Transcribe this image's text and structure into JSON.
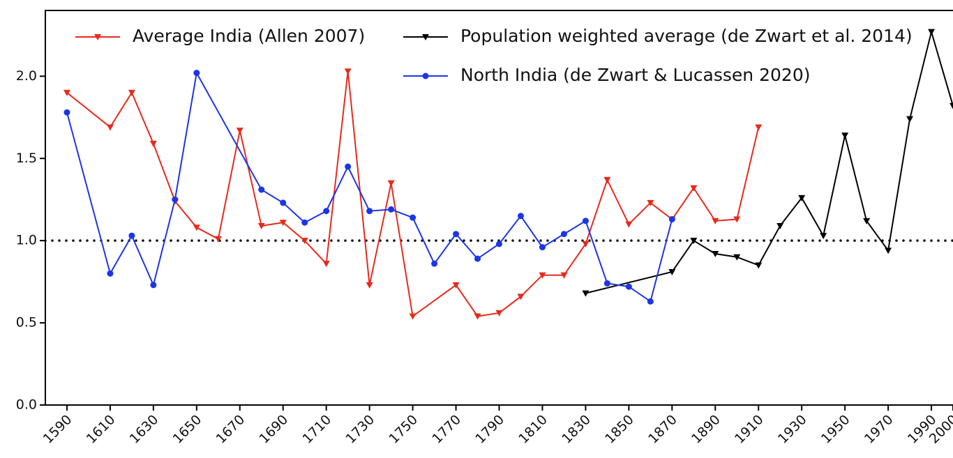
{
  "chart_data": {
    "type": "line",
    "xlim": [
      1580,
      2000
    ],
    "xticks": [
      1590,
      1610,
      1630,
      1650,
      1670,
      1690,
      1710,
      1730,
      1750,
      1770,
      1790,
      1810,
      1830,
      1850,
      1870,
      1890,
      1910,
      1930,
      1950,
      1970,
      1990,
      2000
    ],
    "ylim": [
      0,
      2.4
    ],
    "yticks": [
      {
        "value": 0,
        "label": "0.0"
      },
      0.5,
      {
        "value": 1,
        "label": "1.0"
      },
      1.5,
      {
        "value": 2,
        "label": "2.0"
      }
    ],
    "reference_line": 1.0,
    "series": [
      {
        "name": "Average India (Allen 2007)",
        "color": "#e8291c",
        "marker": "triangle-down",
        "x": [
          1590,
          1610,
          1620,
          1630,
          1640,
          1650,
          1660,
          1670,
          1680,
          1690,
          1700,
          1710,
          1720,
          1730,
          1740,
          1750,
          1770,
          1780,
          1790,
          1800,
          1810,
          1820,
          1830,
          1840,
          1850,
          1860,
          1870,
          1880,
          1890,
          1900,
          1910
        ],
        "values": [
          1.9,
          1.69,
          1.9,
          1.59,
          1.24,
          1.08,
          1.01,
          1.67,
          1.09,
          1.11,
          1.0,
          0.86,
          2.03,
          0.73,
          1.35,
          0.54,
          0.73,
          0.54,
          0.56,
          0.66,
          0.79,
          0.79,
          0.98,
          1.37,
          1.1,
          1.23,
          1.13,
          1.32,
          1.12,
          1.13,
          1.69
        ]
      },
      {
        "name": "Population weighted average (de Zwart et al. 2014)",
        "color": "#000000",
        "marker": "triangle-down",
        "x": [
          1830,
          1870,
          1880,
          1890,
          1900,
          1910,
          1920,
          1930,
          1940,
          1950,
          1960,
          1970,
          1980,
          1990,
          2000
        ],
        "values": [
          0.68,
          0.81,
          1.0,
          0.92,
          0.9,
          0.85,
          1.09,
          1.26,
          1.03,
          1.64,
          1.12,
          0.94,
          1.74,
          2.27,
          1.82
        ]
      },
      {
        "name": "North India (de Zwart & Lucassen 2020)",
        "color": "#1c35e8",
        "marker": "circle",
        "x": [
          1590,
          1610,
          1620,
          1630,
          1640,
          1650,
          1680,
          1690,
          1700,
          1710,
          1720,
          1730,
          1740,
          1750,
          1760,
          1770,
          1780,
          1790,
          1800,
          1810,
          1820,
          1830,
          1840,
          1850,
          1860,
          1870
        ],
        "values": [
          1.78,
          0.8,
          1.03,
          0.73,
          1.25,
          2.02,
          1.31,
          1.23,
          1.11,
          1.18,
          1.45,
          1.18,
          1.19,
          1.14,
          0.86,
          1.04,
          0.89,
          0.98,
          1.15,
          0.96,
          1.04,
          1.12,
          0.74,
          0.72,
          0.63,
          1.13
        ]
      }
    ]
  }
}
